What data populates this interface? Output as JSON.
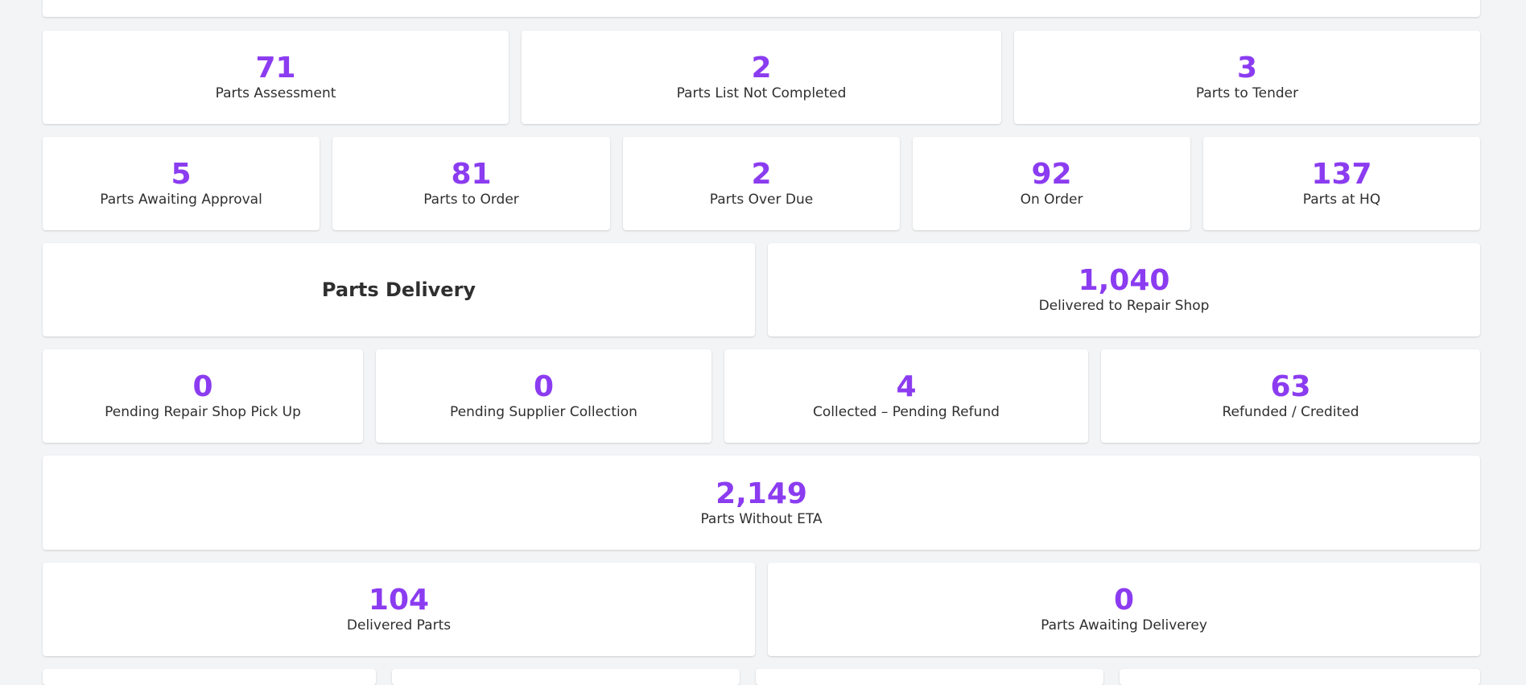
{
  "row1": [
    {
      "value": "71",
      "label": "Parts Assessment"
    },
    {
      "value": "2",
      "label": "Parts List Not Completed"
    },
    {
      "value": "3",
      "label": "Parts to Tender"
    }
  ],
  "row2": [
    {
      "value": "5",
      "label": "Parts Awaiting Approval"
    },
    {
      "value": "81",
      "label": "Parts to Order"
    },
    {
      "value": "2",
      "label": "Parts Over Due"
    },
    {
      "value": "92",
      "label": "On Order"
    },
    {
      "value": "137",
      "label": "Parts at HQ"
    }
  ],
  "delivery": {
    "heading": "Parts Delivery",
    "value": "1,040",
    "label": "Delivered to Repair Shop"
  },
  "row4": [
    {
      "value": "0",
      "label": "Pending Repair Shop Pick Up"
    },
    {
      "value": "0",
      "label": "Pending Supplier Collection"
    },
    {
      "value": "4",
      "label": "Collected – Pending Refund"
    },
    {
      "value": "63",
      "label": "Refunded / Credited"
    }
  ],
  "without_eta": {
    "value": "2,149",
    "label": "Parts Without ETA"
  },
  "row6": [
    {
      "value": "104",
      "label": "Delivered Parts"
    },
    {
      "value": "0",
      "label": "Parts Awaiting Deliverey"
    }
  ],
  "colors": {
    "accent": "#8b3cf0",
    "background": "#f3f4f6",
    "card": "#ffffff"
  }
}
